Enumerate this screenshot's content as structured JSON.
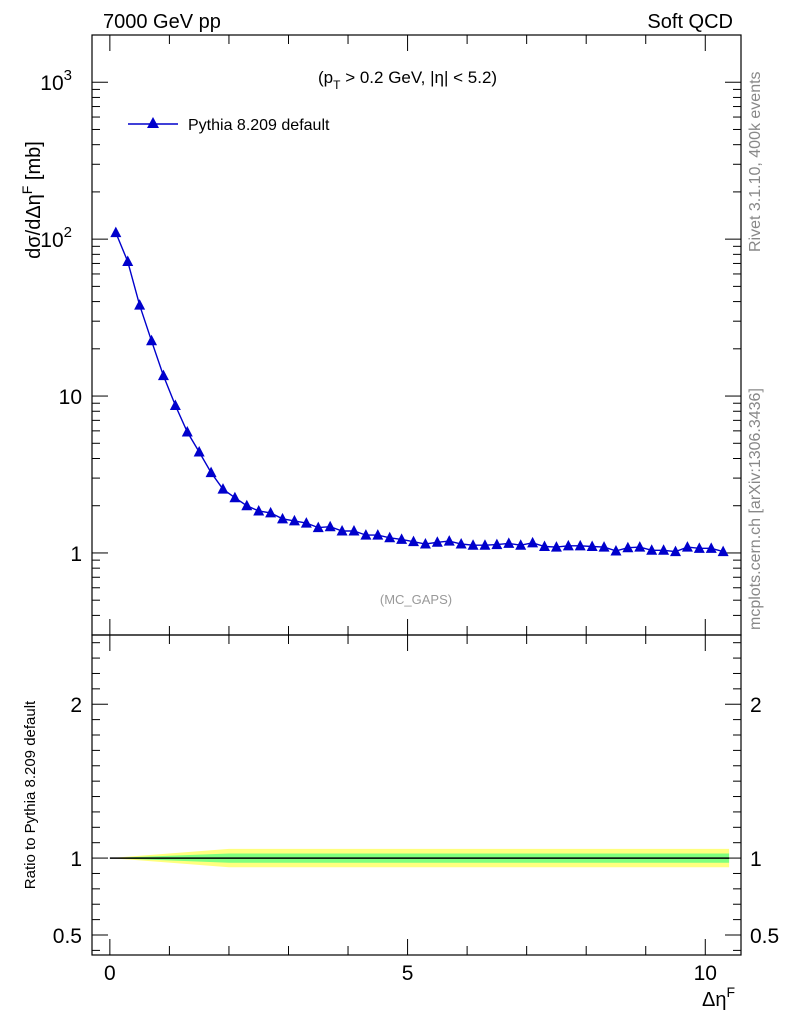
{
  "header": {
    "left": "7000 GeV pp",
    "right": "Soft QCD"
  },
  "side_text": {
    "rivet": "Rivet 3.1.10,  400k events",
    "mcplots": "mcplots.cern.ch [arXiv:1306.3436]"
  },
  "main_panel": {
    "ylabel": "dσ/dΔη",
    "ylabel_sup": "F",
    "ylabel_unit": " [mb]",
    "cut_text": "(p",
    "cut_sub": "T",
    "cut_rest": " > 0.2 GeV, |η| < 5.2)",
    "analysis_tag": "(MC_GAPS)",
    "legend_label": "Pythia 8.209 default",
    "y_ticks": [
      {
        "value": 1,
        "label": "1"
      },
      {
        "value": 10,
        "label": "10"
      },
      {
        "value": 100,
        "label": "10",
        "exp": "2"
      },
      {
        "value": 1000,
        "label": "10",
        "exp": "3"
      }
    ]
  },
  "ratio_panel": {
    "ylabel": "Ratio to Pythia 8.209 default",
    "y_ticks": [
      {
        "value": 0.5,
        "label": "0.5"
      },
      {
        "value": 1,
        "label": "1"
      },
      {
        "value": 2,
        "label": "2"
      }
    ]
  },
  "x_axis": {
    "label": "Δη",
    "label_sup": "F",
    "ticks": [
      {
        "value": 0,
        "label": "0"
      },
      {
        "value": 5,
        "label": "5"
      },
      {
        "value": 10,
        "label": "10"
      }
    ]
  },
  "colors": {
    "series": "#0000cc",
    "band_inner": "#7fff7f",
    "band_outer": "#ffff7f",
    "ratio_line": "#000000"
  },
  "chart_data": {
    "type": "line",
    "xlim": [
      -0.3,
      10.6
    ],
    "ylim": [
      0.3,
      2000
    ],
    "y_scale": "log",
    "ratio_ylim": [
      0.37,
      2.45
    ],
    "series": [
      {
        "name": "Pythia 8.209 default",
        "marker": "triangle",
        "x": [
          0.1,
          0.3,
          0.5,
          0.7,
          0.9,
          1.1,
          1.3,
          1.5,
          1.7,
          1.9,
          2.1,
          2.3,
          2.5,
          2.7,
          2.9,
          3.1,
          3.3,
          3.5,
          3.7,
          3.9,
          4.1,
          4.3,
          4.5,
          4.7,
          4.9,
          5.1,
          5.3,
          5.5,
          5.7,
          5.9,
          6.1,
          6.3,
          6.5,
          6.7,
          6.9,
          7.1,
          7.3,
          7.5,
          7.7,
          7.9,
          8.1,
          8.3,
          8.5,
          8.7,
          8.9,
          9.1,
          9.3,
          9.5,
          9.7,
          9.9,
          10.1,
          10.3
        ],
        "y": [
          110,
          72,
          38,
          22.5,
          13.5,
          8.7,
          5.9,
          4.4,
          3.25,
          2.55,
          2.25,
          2.0,
          1.85,
          1.8,
          1.65,
          1.6,
          1.55,
          1.45,
          1.47,
          1.38,
          1.38,
          1.3,
          1.3,
          1.25,
          1.22,
          1.18,
          1.14,
          1.17,
          1.19,
          1.14,
          1.12,
          1.12,
          1.13,
          1.15,
          1.12,
          1.16,
          1.1,
          1.09,
          1.11,
          1.11,
          1.1,
          1.09,
          1.03,
          1.08,
          1.09,
          1.04,
          1.04,
          1.02,
          1.09,
          1.07,
          1.07,
          1.02
        ]
      }
    ],
    "ratio": {
      "x": [
        0.0,
        10.4
      ],
      "y": [
        1.0,
        1.0
      ],
      "band_inner": [
        0.97,
        1.03
      ],
      "band_outer": [
        0.94,
        1.06
      ]
    }
  }
}
